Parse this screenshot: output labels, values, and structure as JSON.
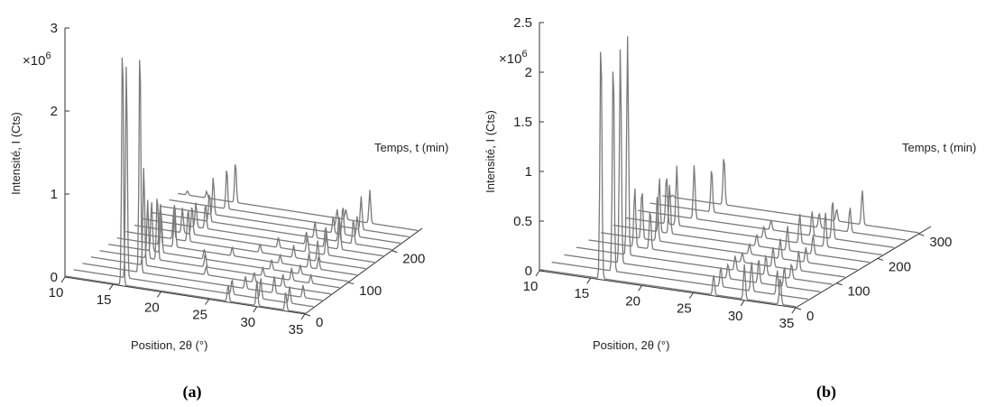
{
  "chart_data": [
    {
      "panel": "(a)",
      "type": "line",
      "view": "waterfall-3d",
      "xlabel": "Position, 2θ (°)",
      "ylabel": "Temps, t (min)",
      "zlabel": "Intensité, I (Cts)",
      "exponent_label": "×10^6",
      "x_ticks": [
        "10",
        "15",
        "20",
        "25",
        "30",
        "35"
      ],
      "y_ticks": [
        "0",
        "100",
        "200"
      ],
      "z_ticks": [
        "0",
        "1",
        "2",
        "3"
      ],
      "xlim": [
        10,
        35
      ],
      "ylim": [
        0,
        270
      ],
      "zlim": [
        0,
        3
      ],
      "series": [
        {
          "t": 0,
          "peaks": [
            [
              16.0,
              3.0
            ],
            [
              27.0,
              0.2
            ],
            [
              30.0,
              0.3
            ],
            [
              33.0,
              0.22
            ]
          ]
        },
        {
          "t": 20,
          "peaks": [
            [
              15.5,
              2.6
            ],
            [
              26.5,
              0.18
            ],
            [
              29.5,
              0.25
            ],
            [
              32.5,
              0.2
            ]
          ]
        },
        {
          "t": 40,
          "peaks": [
            [
              16.0,
              2.8
            ],
            [
              27.0,
              0.15
            ],
            [
              30.0,
              0.2
            ],
            [
              33.0,
              0.15
            ]
          ]
        },
        {
          "t": 60,
          "peaks": [
            [
              15.5,
              1.2
            ],
            [
              22.0,
              0.1
            ],
            [
              27.0,
              0.12
            ],
            [
              30.0,
              0.15
            ]
          ]
        },
        {
          "t": 80,
          "peaks": [
            [
              15.0,
              0.7
            ],
            [
              16.0,
              0.8
            ],
            [
              21.0,
              0.15
            ],
            [
              27.0,
              0.1
            ],
            [
              30.0,
              0.15
            ],
            [
              32.0,
              0.1
            ]
          ]
        },
        {
          "t": 100,
          "peaks": [
            [
              14.5,
              0.6
            ],
            [
              15.5,
              0.5
            ],
            [
              20.0,
              0.12
            ],
            [
              27.0,
              0.12
            ],
            [
              30.0,
              0.1
            ]
          ]
        },
        {
          "t": 120,
          "peaks": [
            [
              14.5,
              0.5
            ],
            [
              16.0,
              0.55
            ],
            [
              22.0,
              0.1
            ],
            [
              27.0,
              0.1
            ],
            [
              30.0,
              0.18
            ],
            [
              31.0,
              0.15
            ]
          ]
        },
        {
          "t": 140,
          "peaks": [
            [
              15.0,
              0.35
            ],
            [
              16.5,
              0.4
            ],
            [
              24.0,
              0.1
            ],
            [
              27.5,
              0.15
            ],
            [
              30.0,
              0.25
            ]
          ]
        },
        {
          "t": 160,
          "peaks": [
            [
              15.0,
              0.3
            ],
            [
              16.0,
              0.35
            ],
            [
              25.0,
              0.12
            ],
            [
              28.0,
              0.2
            ],
            [
              30.0,
              0.3
            ]
          ]
        },
        {
          "t": 180,
          "peaks": [
            [
              15.5,
              0.3
            ],
            [
              16.5,
              0.3
            ],
            [
              27.0,
              0.15
            ],
            [
              29.0,
              0.25
            ],
            [
              30.5,
              0.35
            ]
          ]
        },
        {
          "t": 200,
          "peaks": [
            [
              16.0,
              0.35
            ],
            [
              27.0,
              0.2
            ],
            [
              29.5,
              0.3
            ],
            [
              31.0,
              0.3
            ]
          ]
        },
        {
          "t": 220,
          "peaks": [
            [
              15.5,
              0.45
            ],
            [
              28.0,
              0.2
            ],
            [
              29.0,
              0.35
            ],
            [
              30.5,
              0.25
            ]
          ]
        },
        {
          "t": 240,
          "peaks": [
            [
              16.0,
              0.5
            ],
            [
              27.5,
              0.2
            ],
            [
              30.0,
              0.4
            ]
          ]
        },
        {
          "t": 260,
          "peaks": [
            [
              11.0,
              0.05
            ],
            [
              13.0,
              0.08
            ],
            [
              16.0,
              0.5
            ],
            [
              27.5,
              0.12
            ],
            [
              30.0,
              0.4
            ]
          ]
        }
      ]
    },
    {
      "panel": "(b)",
      "type": "line",
      "view": "waterfall-3d",
      "xlabel": "Position, 2θ (°)",
      "ylabel": "Temps, t (min)",
      "zlabel": "Intensité, I (Cts)",
      "exponent_label": "×10^6",
      "x_ticks": [
        "10",
        "15",
        "20",
        "25",
        "30",
        "35"
      ],
      "y_ticks": [
        "0",
        "100",
        "200",
        "300"
      ],
      "z_ticks": [
        "0",
        "0.5",
        "1",
        "1.5",
        "2",
        "2.5"
      ],
      "xlim": [
        10,
        35
      ],
      "ylim": [
        0,
        330
      ],
      "zlim": [
        0,
        2.5
      ],
      "series": [
        {
          "t": 0,
          "peaks": [
            [
              16.0,
              2.5
            ],
            [
              27.0,
              0.2
            ],
            [
              30.0,
              0.35
            ],
            [
              33.5,
              0.28
            ]
          ]
        },
        {
          "t": 30,
          "peaks": [
            [
              16.0,
              2.2
            ],
            [
              26.5,
              0.2
            ],
            [
              29.5,
              0.3
            ],
            [
              32.0,
              0.25
            ]
          ]
        },
        {
          "t": 60,
          "peaks": [
            [
              15.5,
              2.2
            ],
            [
              26.0,
              0.15
            ],
            [
              29.0,
              0.25
            ],
            [
              31.5,
              0.2
            ]
          ]
        },
        {
          "t": 90,
          "peaks": [
            [
              15.0,
              2.2
            ],
            [
              25.5,
              0.15
            ],
            [
              28.5,
              0.2
            ],
            [
              31.0,
              0.15
            ]
          ]
        },
        {
          "t": 120,
          "peaks": [
            [
              14.5,
              0.6
            ],
            [
              16.0,
              0.4
            ],
            [
              25.0,
              0.1
            ],
            [
              28.0,
              0.2
            ],
            [
              30.5,
              0.2
            ]
          ]
        },
        {
          "t": 150,
          "peaks": [
            [
              14.0,
              0.5
            ],
            [
              15.5,
              0.45
            ],
            [
              24.5,
              0.1
            ],
            [
              27.5,
              0.2
            ],
            [
              30.0,
              0.15
            ]
          ]
        },
        {
          "t": 180,
          "peaks": [
            [
              14.5,
              0.55
            ],
            [
              15.5,
              0.5
            ],
            [
              24.0,
              0.12
            ],
            [
              27.0,
              0.25
            ],
            [
              29.5,
              0.2
            ]
          ]
        },
        {
          "t": 210,
          "peaks": [
            [
              14.0,
              0.5
            ],
            [
              15.0,
              0.6
            ],
            [
              23.5,
              0.12
            ],
            [
              27.0,
              0.3
            ],
            [
              29.5,
              0.35
            ]
          ]
        },
        {
          "t": 240,
          "peaks": [
            [
              15.5,
              0.55
            ],
            [
              23.0,
              0.1
            ],
            [
              27.0,
              0.25
            ],
            [
              29.0,
              0.4
            ]
          ]
        },
        {
          "t": 270,
          "peaks": [
            [
              16.0,
              0.45
            ],
            [
              26.5,
              0.15
            ],
            [
              29.5,
              0.25
            ]
          ]
        },
        {
          "t": 300,
          "peaks": [
            [
              11.0,
              0.02
            ],
            [
              16.0,
              0.5
            ],
            [
              27.0,
              0.12
            ],
            [
              29.5,
              0.35
            ]
          ]
        }
      ]
    }
  ]
}
